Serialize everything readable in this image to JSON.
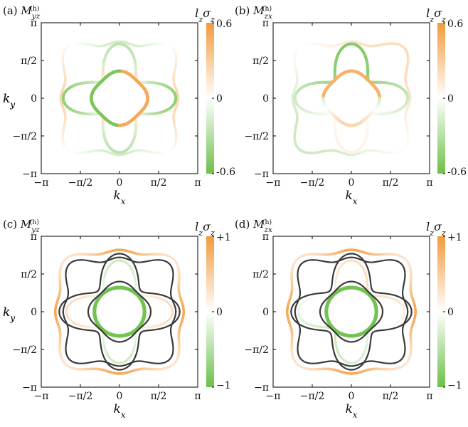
{
  "figure": {
    "panels": [
      {
        "id": "a",
        "label": "(a)",
        "title_symbol": "M",
        "title_sub": "yz",
        "title_sup": "(h)",
        "x_axis_label": "k",
        "x_axis_sub": "x",
        "y_axis_label": "k",
        "y_axis_sub": "y",
        "x_ticks": [
          "−π",
          "−π/2",
          "0",
          "π/2",
          "π"
        ],
        "y_ticks": [
          "π",
          "π/2",
          "0",
          "−π/2",
          "−π"
        ],
        "colorbar": {
          "title": "l",
          "title_sub": "z",
          "title_mid": "σ",
          "title_sub2": "z",
          "max_label": "0.6",
          "mid_label": "0",
          "min_label": "-0.6",
          "range": [
            -0.6,
            0.6
          ]
        },
        "has_black_curves": false
      },
      {
        "id": "b",
        "label": "(b)",
        "title_symbol": "M",
        "title_sub": "zx",
        "title_sup": "(h)",
        "x_axis_label": "k",
        "x_axis_sub": "x",
        "y_axis_label": "k",
        "y_axis_sub": "y",
        "x_ticks": [
          "−π",
          "−π/2",
          "0",
          "π/2",
          "π"
        ],
        "y_ticks": [
          "π",
          "π/2",
          "0",
          "−π/2",
          "−π"
        ],
        "colorbar": {
          "title": "l",
          "title_sub": "z",
          "title_mid": "σ",
          "title_sub2": "z",
          "max_label": "0.6",
          "mid_label": "0",
          "min_label": "-0.6",
          "range": [
            -0.6,
            0.6
          ]
        },
        "has_black_curves": false
      },
      {
        "id": "c",
        "label": "(c)",
        "title_symbol": "M",
        "title_sub": "yz",
        "title_sup": "(h)",
        "x_axis_label": "k",
        "x_axis_sub": "x",
        "y_axis_label": "k",
        "y_axis_sub": "y",
        "x_ticks": [
          "−π",
          "−π/2",
          "0",
          "π/2",
          "π"
        ],
        "y_ticks": [
          "π",
          "π/2",
          "0",
          "−π/2",
          "−π"
        ],
        "colorbar": {
          "title": "l",
          "title_sub": "z",
          "title_mid": "σ",
          "title_sub2": "z",
          "max_label": "+1",
          "mid_label": "0",
          "min_label": "−1",
          "range": [
            -1,
            1
          ]
        },
        "has_black_curves": true
      },
      {
        "id": "d",
        "label": "(d)",
        "title_symbol": "M",
        "title_sub": "zx",
        "title_sup": "(h)",
        "x_axis_label": "k",
        "x_axis_sub": "x",
        "y_axis_label": "k",
        "y_axis_sub": "y",
        "x_ticks": [
          "−π",
          "−π/2",
          "0",
          "π/2",
          "π"
        ],
        "y_ticks": [
          "π",
          "π/2",
          "0",
          "−π/2",
          "−π"
        ],
        "colorbar": {
          "title": "l",
          "title_sub": "z",
          "title_mid": "σ",
          "title_sub2": "z",
          "max_label": "+1",
          "mid_label": "0",
          "min_label": "−1",
          "range": [
            -1,
            1
          ]
        },
        "has_black_curves": true
      }
    ],
    "colors": {
      "positive": "#f39a3c",
      "neutral": "#ffffff",
      "negative": "#6cc04a",
      "black_curve": "#3a3a3a",
      "frame": "#000000"
    }
  }
}
